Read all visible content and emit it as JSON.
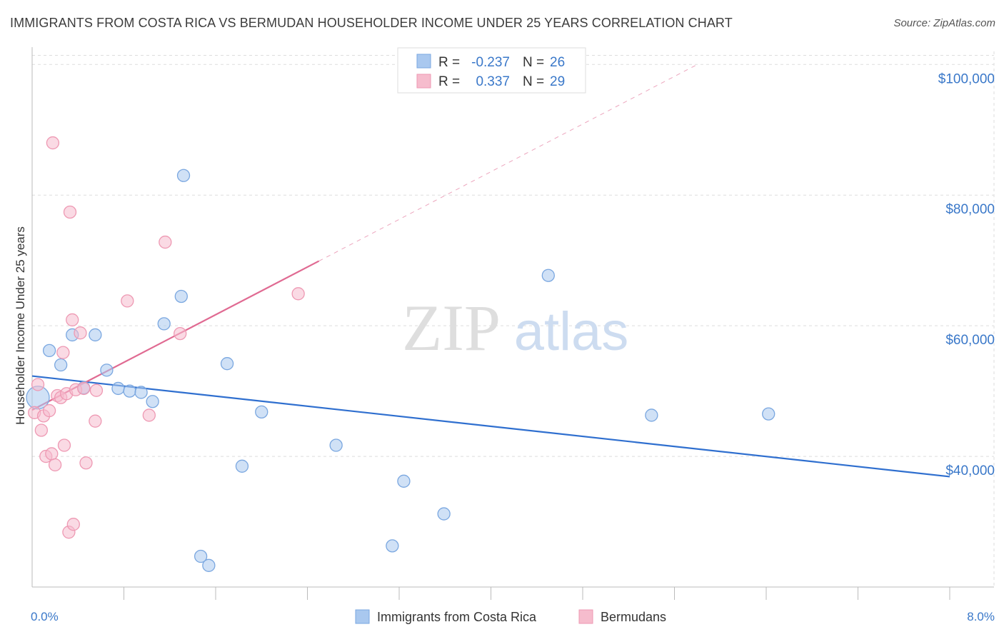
{
  "title": "IMMIGRANTS FROM COSTA RICA VS BERMUDAN HOUSEHOLDER INCOME UNDER 25 YEARS CORRELATION CHART",
  "source": "Source: ZipAtlas.com",
  "watermark": {
    "zip": "ZIP",
    "atlas": "atlas"
  },
  "colors": {
    "blue_fill": "#a9c8ef",
    "blue_stroke": "#7aa7e0",
    "blue_line": "#2f6fcf",
    "pink_fill": "#f6bccd",
    "pink_stroke": "#ee99b3",
    "pink_line": "#e06a92",
    "axis_text": "#3a78c9",
    "grid": "#dddddd"
  },
  "legend_top": {
    "rows": [
      {
        "r_label": "R =",
        "r_value": "-0.237",
        "n_label": "N =",
        "n_value": "26",
        "series": "blue"
      },
      {
        "r_label": "R =",
        "r_value": "0.337",
        "n_label": "N =",
        "n_value": "29",
        "series": "pink"
      }
    ]
  },
  "chart_data": {
    "type": "scatter",
    "title": "IMMIGRANTS FROM COSTA RICA VS BERMUDAN HOUSEHOLDER INCOME UNDER 25 YEARS CORRELATION CHART",
    "xlabel": "",
    "ylabel": "Householder Income Under 25 years",
    "xlim": [
      0,
      8.0
    ],
    "ylim": [
      20000,
      102000
    ],
    "x_tick_labels": [
      {
        "value": 0,
        "label": "0.0%"
      },
      {
        "value": 8.0,
        "label": "8.0%"
      }
    ],
    "x_minor_ticks": [
      0.8,
      1.6,
      2.4,
      3.2,
      4.0,
      4.8,
      5.6,
      6.4,
      7.2,
      8.0
    ],
    "y_ticks": [
      {
        "value": 40000,
        "label": "$40,000"
      },
      {
        "value": 60000,
        "label": "$60,000"
      },
      {
        "value": 80000,
        "label": "$80,000"
      },
      {
        "value": 100000,
        "label": "$100,000"
      }
    ],
    "series": [
      {
        "name": "Immigrants from Costa Rica",
        "color": "blue",
        "r": -0.237,
        "n": 26,
        "trend": {
          "x0": 0.0,
          "y0": 52300,
          "x1": 8.0,
          "y1": 36900,
          "x_end_solid": 8.0
        },
        "points": [
          {
            "x": 0.05,
            "y": 49000,
            "big": true
          },
          {
            "x": 0.15,
            "y": 56200
          },
          {
            "x": 0.25,
            "y": 54000
          },
          {
            "x": 0.35,
            "y": 58600
          },
          {
            "x": 0.45,
            "y": 50500
          },
          {
            "x": 0.55,
            "y": 58600
          },
          {
            "x": 0.65,
            "y": 53200
          },
          {
            "x": 0.75,
            "y": 50400
          },
          {
            "x": 0.85,
            "y": 50000
          },
          {
            "x": 0.95,
            "y": 49800
          },
          {
            "x": 1.05,
            "y": 48400
          },
          {
            "x": 1.15,
            "y": 60300
          },
          {
            "x": 1.3,
            "y": 64500
          },
          {
            "x": 1.32,
            "y": 83000
          },
          {
            "x": 1.47,
            "y": 24700
          },
          {
            "x": 1.54,
            "y": 23300
          },
          {
            "x": 1.7,
            "y": 54200
          },
          {
            "x": 1.83,
            "y": 38500
          },
          {
            "x": 2.0,
            "y": 46800
          },
          {
            "x": 2.65,
            "y": 41700
          },
          {
            "x": 3.14,
            "y": 26300
          },
          {
            "x": 3.24,
            "y": 36200
          },
          {
            "x": 3.59,
            "y": 31200
          },
          {
            "x": 4.5,
            "y": 67700
          },
          {
            "x": 5.4,
            "y": 46300
          },
          {
            "x": 6.42,
            "y": 46500
          }
        ]
      },
      {
        "name": "Bermudans",
        "color": "pink",
        "r": 0.337,
        "n": 29,
        "trend": {
          "x0": 0.0,
          "y0": 47100,
          "x1": 5.8,
          "y1": 100000,
          "x_end_solid": 2.5
        },
        "points": [
          {
            "x": 0.02,
            "y": 46700
          },
          {
            "x": 0.05,
            "y": 51000
          },
          {
            "x": 0.08,
            "y": 44000
          },
          {
            "x": 0.1,
            "y": 46200
          },
          {
            "x": 0.12,
            "y": 40000
          },
          {
            "x": 0.15,
            "y": 47000
          },
          {
            "x": 0.17,
            "y": 40400
          },
          {
            "x": 0.18,
            "y": 88000
          },
          {
            "x": 0.2,
            "y": 38700
          },
          {
            "x": 0.22,
            "y": 49300
          },
          {
            "x": 0.25,
            "y": 49000
          },
          {
            "x": 0.27,
            "y": 55900
          },
          {
            "x": 0.28,
            "y": 41700
          },
          {
            "x": 0.3,
            "y": 49600
          },
          {
            "x": 0.32,
            "y": 28400
          },
          {
            "x": 0.33,
            "y": 77400
          },
          {
            "x": 0.35,
            "y": 60900
          },
          {
            "x": 0.36,
            "y": 29600
          },
          {
            "x": 0.38,
            "y": 50200
          },
          {
            "x": 0.42,
            "y": 58900
          },
          {
            "x": 0.45,
            "y": 50400
          },
          {
            "x": 0.47,
            "y": 39000
          },
          {
            "x": 0.55,
            "y": 45400
          },
          {
            "x": 0.56,
            "y": 50100
          },
          {
            "x": 0.83,
            "y": 63800
          },
          {
            "x": 1.02,
            "y": 46300
          },
          {
            "x": 1.16,
            "y": 72800
          },
          {
            "x": 1.29,
            "y": 58800
          },
          {
            "x": 2.32,
            "y": 64900
          }
        ]
      }
    ]
  },
  "legend_bottom": [
    {
      "label": "Immigrants from Costa Rica",
      "series": "blue"
    },
    {
      "label": "Bermudans",
      "series": "pink"
    }
  ]
}
